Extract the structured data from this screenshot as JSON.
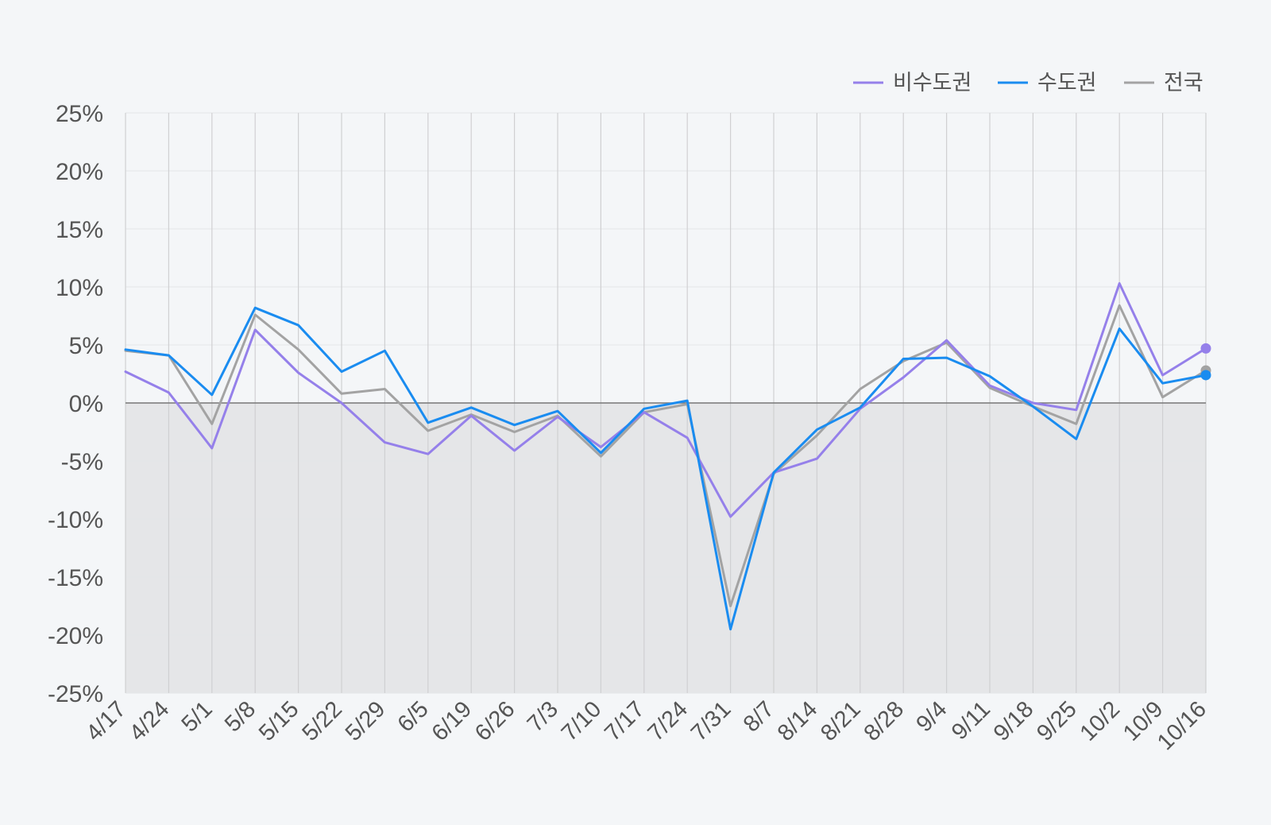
{
  "colors": {
    "background": "#f4f6f8",
    "negative_fill": "#e5e6e8",
    "grid": "#d0d0d2",
    "grid_h": "#e4e6e9",
    "zero_line": "#777777",
    "text": "#555555"
  },
  "chart_data": {
    "type": "line",
    "x": [
      "4/17",
      "4/24",
      "5/1",
      "5/8",
      "5/15",
      "5/22",
      "5/29",
      "6/5",
      "6/19",
      "6/26",
      "7/3",
      "7/10",
      "7/17",
      "7/24",
      "7/31",
      "8/7",
      "8/14",
      "8/21",
      "8/28",
      "9/4",
      "9/11",
      "9/18",
      "9/25",
      "10/2",
      "10/9",
      "10/16"
    ],
    "y_ticks": [
      "25%",
      "20%",
      "15%",
      "10%",
      "5%",
      "0%",
      "-5%",
      "-10%",
      "-15%",
      "-20%",
      "-25%"
    ],
    "ylim": [
      -25,
      25
    ],
    "y_unit": "%",
    "grid": true,
    "negative_region_shaded": true,
    "legend_position": "top-right",
    "series": [
      {
        "name": "비수도권",
        "color": "#9580ea",
        "values": [
          2.7,
          0.9,
          -3.9,
          6.3,
          2.6,
          0.0,
          -3.4,
          -4.4,
          -1.1,
          -4.1,
          -1.2,
          -3.8,
          -0.8,
          -3.0,
          -9.8,
          -6.0,
          -4.8,
          -0.5,
          2.2,
          5.4,
          1.5,
          0.0,
          -0.6,
          10.3,
          2.4,
          4.7
        ]
      },
      {
        "name": "수도권",
        "color": "#1a8cf0",
        "values": [
          4.6,
          4.1,
          0.7,
          8.2,
          6.7,
          2.7,
          4.5,
          -1.7,
          -0.4,
          -1.9,
          -0.7,
          -4.3,
          -0.5,
          0.2,
          -19.5,
          -6.0,
          -2.3,
          -0.4,
          3.8,
          3.9,
          2.3,
          -0.3,
          -3.1,
          6.4,
          1.7,
          2.4
        ]
      },
      {
        "name": "전국",
        "color": "#a3a3a3",
        "values": [
          4.5,
          4.1,
          -1.8,
          7.6,
          4.6,
          0.8,
          1.2,
          -2.4,
          -1.0,
          -2.5,
          -1.1,
          -4.6,
          -0.8,
          -0.1,
          -17.5,
          -6.1,
          -2.8,
          1.2,
          3.6,
          5.2,
          1.3,
          -0.3,
          -1.8,
          8.4,
          0.5,
          2.8
        ]
      }
    ]
  }
}
